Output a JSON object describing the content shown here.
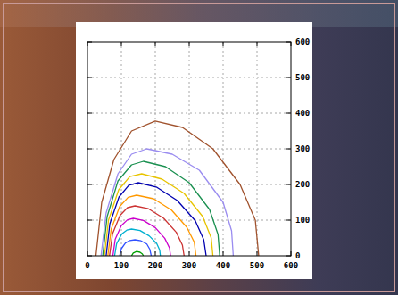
{
  "chart_data": {
    "type": "line",
    "grid": true,
    "xlim": [
      0,
      600
    ],
    "ylim": [
      0,
      600
    ],
    "xticks": [
      0,
      100,
      200,
      300,
      400,
      500,
      600
    ],
    "yticks": [
      0,
      100,
      200,
      300,
      400,
      500,
      600
    ],
    "series": [
      {
        "color": "#a0522d",
        "x": [
          25,
          42,
          78,
          130,
          200,
          280,
          370,
          450,
          495,
          505
        ],
        "values": [
          0,
          150,
          270,
          350,
          378,
          360,
          300,
          200,
          100,
          0
        ]
      },
      {
        "color": "#9a8cf0",
        "x": [
          40,
          55,
          90,
          130,
          175,
          250,
          330,
          400,
          425,
          430
        ],
        "values": [
          0,
          120,
          230,
          285,
          300,
          285,
          240,
          150,
          70,
          0
        ]
      },
      {
        "color": "#1a9050",
        "x": [
          45,
          58,
          90,
          130,
          165,
          230,
          300,
          360,
          385,
          390
        ],
        "values": [
          0,
          110,
          210,
          255,
          265,
          250,
          205,
          130,
          60,
          0
        ]
      },
      {
        "color": "#e8c400",
        "x": [
          50,
          62,
          92,
          125,
          160,
          220,
          285,
          340,
          365,
          370
        ],
        "values": [
          0,
          100,
          185,
          222,
          230,
          215,
          175,
          110,
          50,
          0
        ]
      },
      {
        "color": "#0000b0",
        "x": [
          55,
          66,
          93,
          122,
          150,
          205,
          265,
          318,
          343,
          350
        ],
        "values": [
          0,
          90,
          165,
          198,
          205,
          192,
          155,
          98,
          45,
          0
        ]
      },
      {
        "color": "#ff9900",
        "x": [
          60,
          70,
          95,
          120,
          145,
          195,
          248,
          293,
          315,
          320
        ],
        "values": [
          0,
          75,
          138,
          164,
          170,
          160,
          128,
          80,
          38,
          0
        ]
      },
      {
        "color": "#cc3333",
        "x": [
          65,
          74,
          96,
          118,
          140,
          180,
          225,
          262,
          280,
          285
        ],
        "values": [
          0,
          62,
          113,
          135,
          140,
          132,
          105,
          66,
          30,
          0
        ]
      },
      {
        "color": "#cc00cc",
        "x": [
          75,
          82,
          100,
          118,
          135,
          165,
          200,
          228,
          242,
          245
        ],
        "values": [
          0,
          47,
          85,
          101,
          105,
          99,
          79,
          49,
          22,
          0
        ]
      },
      {
        "color": "#00b0d0",
        "x": [
          80,
          86,
          101,
          116,
          130,
          155,
          182,
          204,
          213,
          215
        ],
        "values": [
          0,
          34,
          61,
          72,
          75,
          71,
          56,
          35,
          16,
          0
        ]
      },
      {
        "color": "#3050ff",
        "x": [
          95,
          100,
          112,
          125,
          140,
          158,
          175,
          184,
          188
        ],
        "values": [
          0,
          20,
          36,
          43,
          45,
          42,
          33,
          18,
          0
        ]
      },
      {
        "color": "#00a000",
        "x": [
          130,
          135,
          145,
          155,
          162,
          165
        ],
        "values": [
          0,
          8,
          12,
          10,
          5,
          0
        ]
      }
    ]
  }
}
